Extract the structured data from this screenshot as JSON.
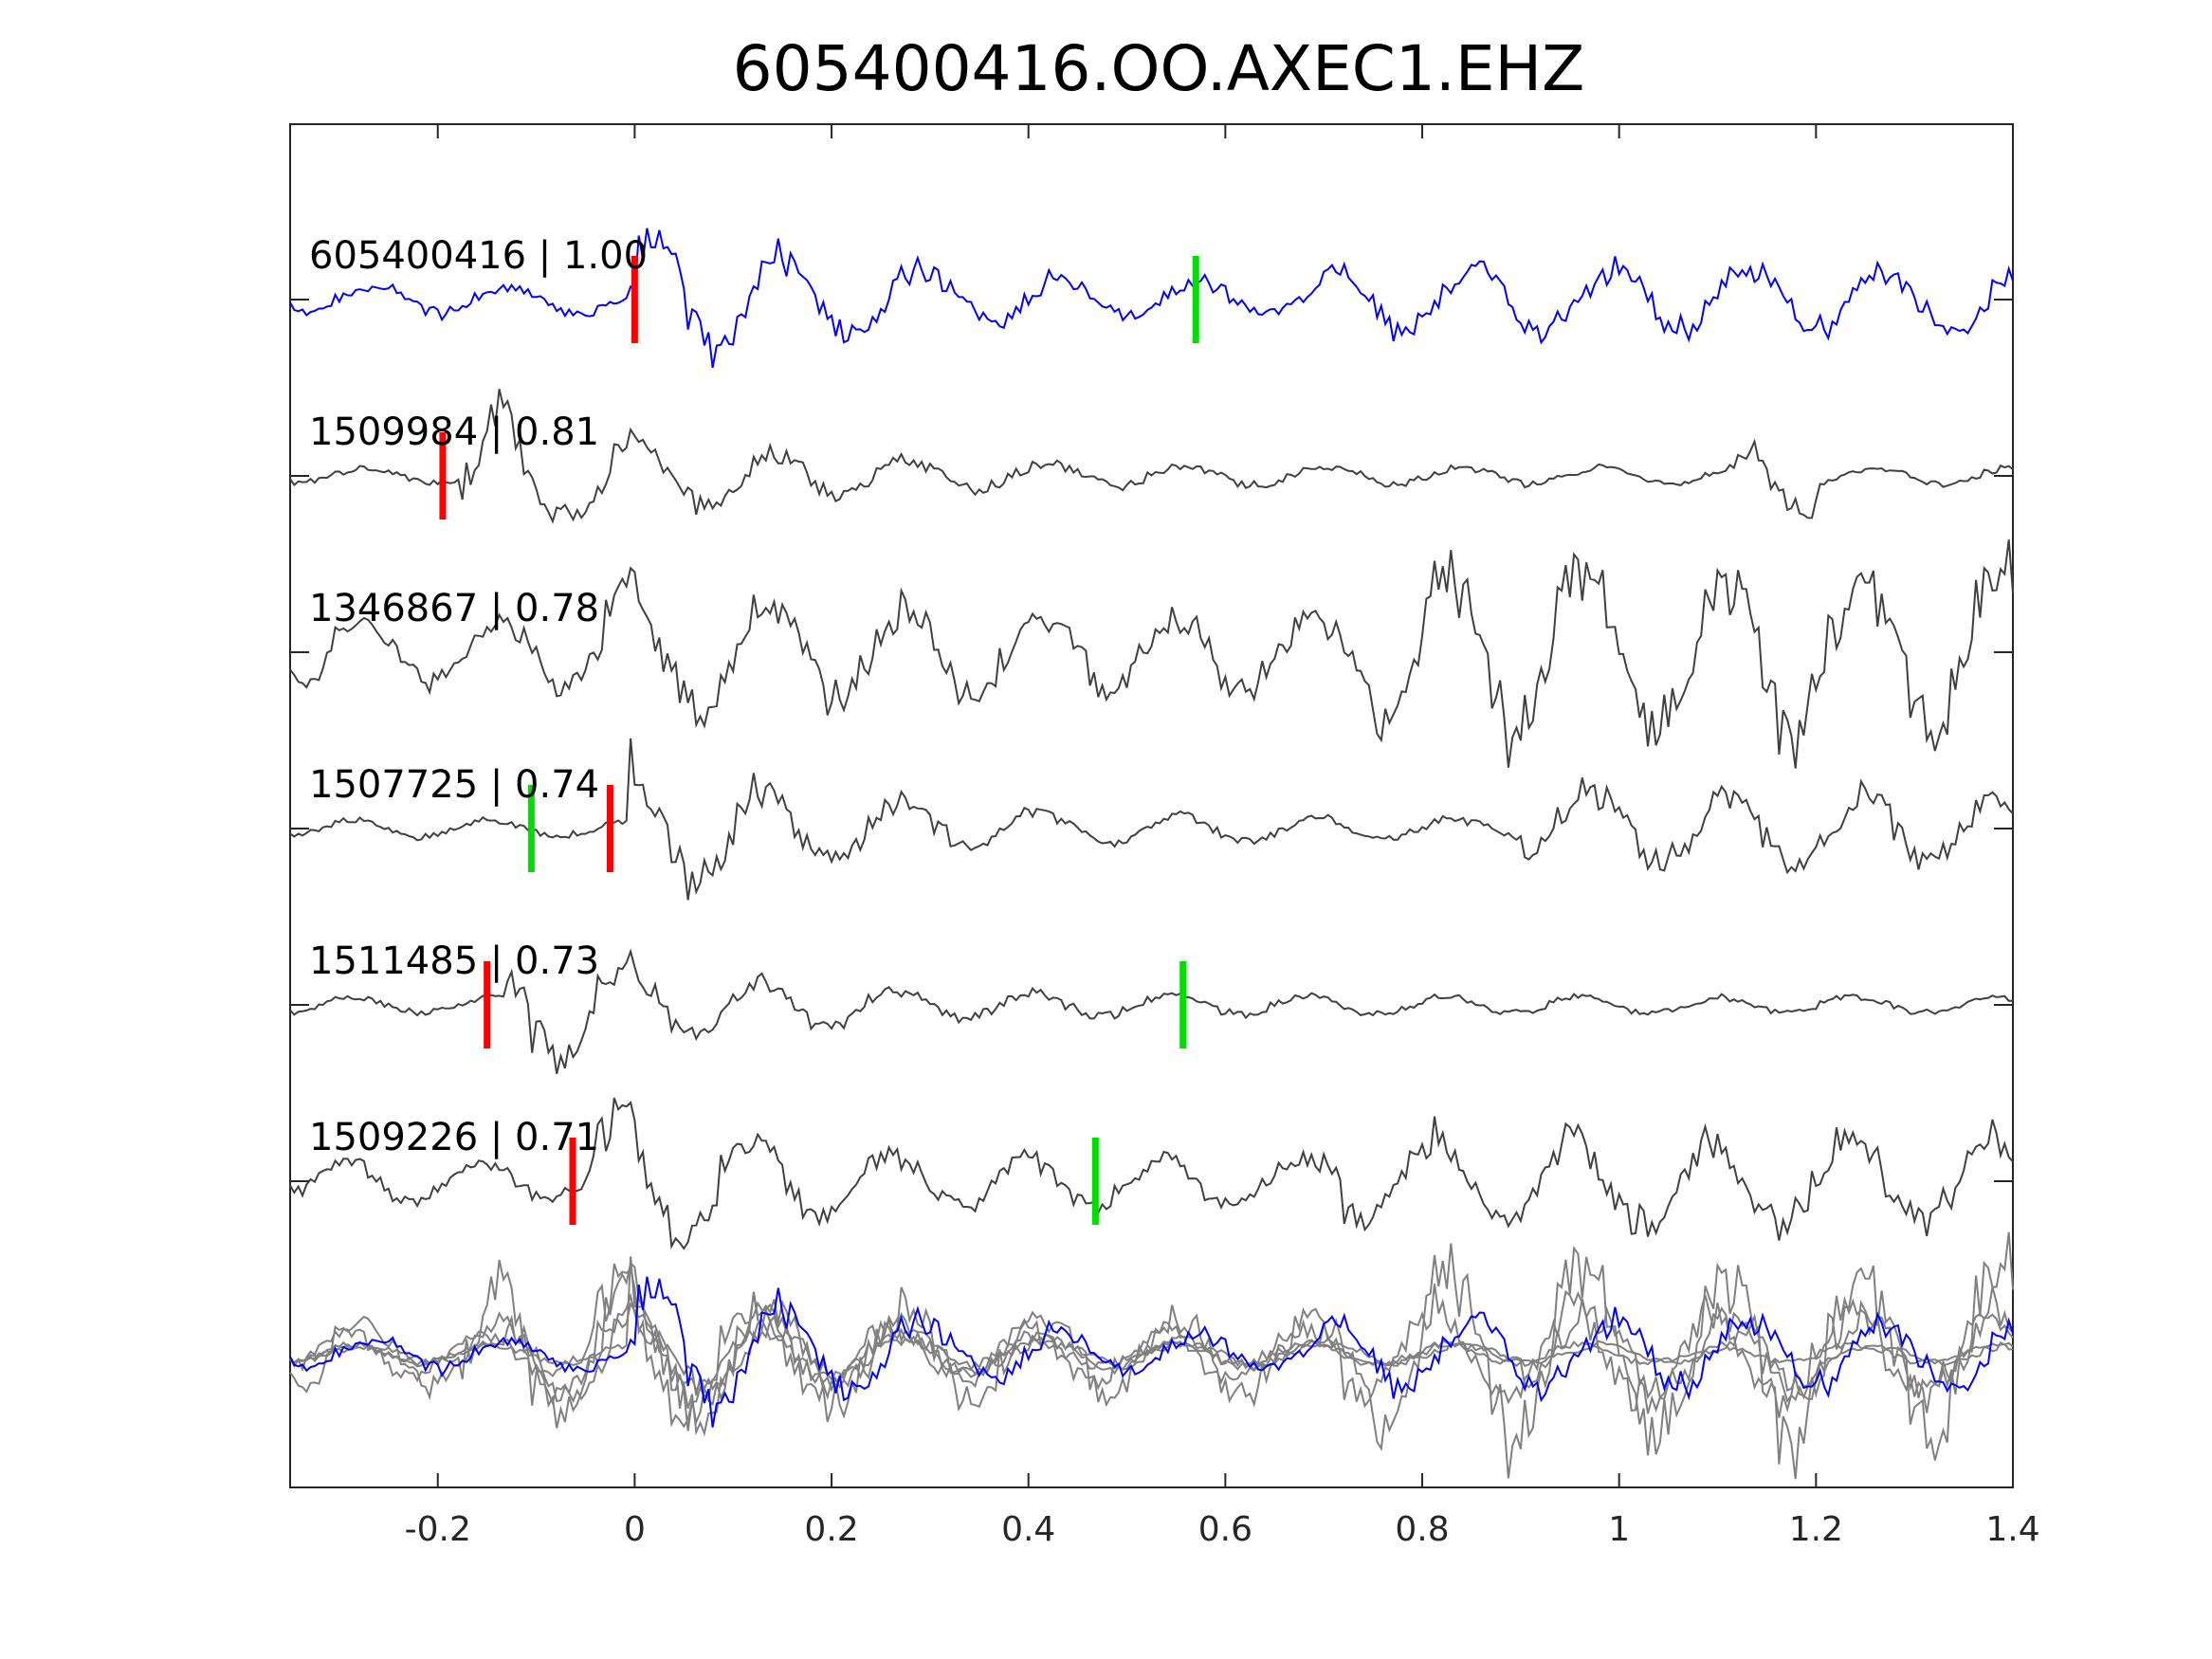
{
  "chart_data": {
    "type": "line",
    "title": "605400416.OO.AXEC1.EHZ",
    "xlabel": "",
    "ylabel": "",
    "xlim": [
      -0.35,
      1.4
    ],
    "xticks": [
      -0.2,
      0,
      0.2,
      0.4,
      0.6,
      0.8,
      1,
      1.2,
      1.4
    ],
    "xtick_labels": [
      "-0.2",
      "0",
      "0.2",
      "0.4",
      "0.6",
      "0.8",
      "1",
      "1.2",
      "1.4"
    ],
    "grid": false,
    "colors": {
      "template": "#0000ff",
      "neighbor": "#404040",
      "overlay": "#808080",
      "p_pick": "#ff0000",
      "s_pick": "#00dd00",
      "axis": "#262626"
    },
    "traces": [
      {
        "label": "605400416 | 1.00",
        "event": "605400416",
        "cc": 1.0,
        "color": "template",
        "p_pick": 0.0,
        "s_pick": 0.57
      },
      {
        "label": "1509984 | 0.81",
        "event": "1509984",
        "cc": 0.81,
        "color": "neighbor",
        "p_pick": -0.195,
        "s_pick": null
      },
      {
        "label": "1346867 | 0.78",
        "event": "1346867",
        "cc": 0.78,
        "color": "neighbor",
        "p_pick": null,
        "s_pick": null
      },
      {
        "label": "1507725 | 0.74",
        "event": "1507725",
        "cc": 0.74,
        "color": "neighbor",
        "p_pick": -0.025,
        "s_pick": -0.105
      },
      {
        "label": "1511485 | 0.73",
        "event": "1511485",
        "cc": 0.73,
        "color": "neighbor",
        "p_pick": -0.15,
        "s_pick": 0.557
      },
      {
        "label": "1509226 | 0.71",
        "event": "1509226",
        "cc": 0.71,
        "color": "neighbor",
        "p_pick": -0.063,
        "s_pick": 0.468
      }
    ]
  }
}
